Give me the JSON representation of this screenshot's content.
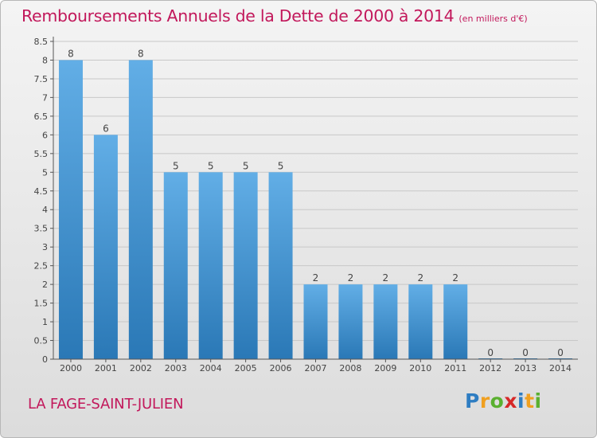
{
  "title": "Remboursements Annuels de la Dette de 2000 à 2014",
  "unit": "(en milliers d'€)",
  "commune": "LA FAGE-SAINT-JULIEN",
  "brand": {
    "letters": [
      "P",
      "r",
      "o",
      "x",
      "i",
      "t",
      "i"
    ],
    "colors": [
      "#2e7dc2",
      "#f0a020",
      "#5ab030",
      "#d62828",
      "#2e7dc2",
      "#f0a020",
      "#5ab030"
    ]
  },
  "colors": {
    "title": "#c2185b",
    "bar_light": "#62aee6",
    "bar_dark": "#2a78b6",
    "axis": "#555555",
    "grid": "#c8c8c8"
  },
  "chart_data": {
    "type": "bar",
    "categories": [
      "2000",
      "2001",
      "2002",
      "2003",
      "2004",
      "2005",
      "2006",
      "2007",
      "2008",
      "2009",
      "2010",
      "2011",
      "2012",
      "2013",
      "2014"
    ],
    "values": [
      8,
      6,
      8,
      5,
      5,
      5,
      5,
      2,
      2,
      2,
      2,
      2,
      0,
      0,
      0
    ],
    "data_labels": [
      "8",
      "6",
      "8",
      "5",
      "5",
      "5",
      "5",
      "2",
      "2",
      "2",
      "2",
      "2",
      "0",
      "0",
      "0"
    ],
    "yticks": [
      "0",
      "0.5",
      "1",
      "1.5",
      "2",
      "2.5",
      "3",
      "3.5",
      "4",
      "4.5",
      "5",
      "5.5",
      "6",
      "6.5",
      "7",
      "7.5",
      "8",
      "8.5"
    ],
    "ylim": [
      0,
      8.5
    ],
    "xlabel": "",
    "ylabel": "",
    "grid": true
  }
}
